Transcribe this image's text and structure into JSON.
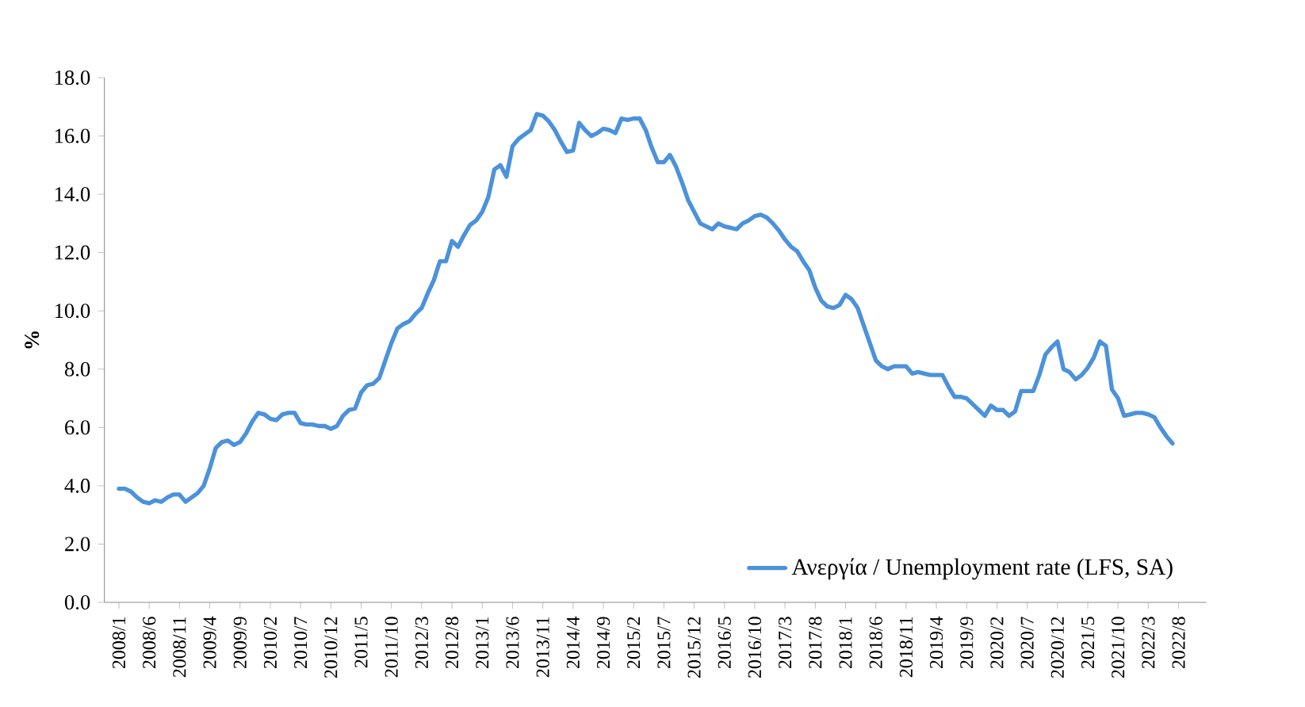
{
  "chart_data": {
    "type": "line",
    "ylabel": "%",
    "categories": [
      "2008/1",
      null,
      null,
      null,
      null,
      "2008/6",
      null,
      null,
      null,
      null,
      "2008/11",
      null,
      null,
      null,
      null,
      "2009/4",
      null,
      null,
      null,
      null,
      "2009/9",
      null,
      null,
      null,
      null,
      "2010/2",
      null,
      null,
      null,
      null,
      "2010/7",
      null,
      null,
      null,
      null,
      "2010/12",
      null,
      null,
      null,
      null,
      "2011/5",
      null,
      null,
      null,
      null,
      "2011/10",
      null,
      null,
      null,
      null,
      "2012/3",
      null,
      null,
      null,
      null,
      "2012/8",
      null,
      null,
      null,
      null,
      "2013/1",
      null,
      null,
      null,
      null,
      "2013/6",
      null,
      null,
      null,
      null,
      "2013/11",
      null,
      null,
      null,
      null,
      "2014/4",
      null,
      null,
      null,
      null,
      "2014/9",
      null,
      null,
      null,
      null,
      "2015/2",
      null,
      null,
      null,
      null,
      "2015/7",
      null,
      null,
      null,
      null,
      "2015/12",
      null,
      null,
      null,
      null,
      "2016/5",
      null,
      null,
      null,
      null,
      "2016/10",
      null,
      null,
      null,
      null,
      "2017/3",
      null,
      null,
      null,
      null,
      "2017/8",
      null,
      null,
      null,
      null,
      "2018/1",
      null,
      null,
      null,
      null,
      "2018/6",
      null,
      null,
      null,
      null,
      "2018/11",
      null,
      null,
      null,
      null,
      "2019/4",
      null,
      null,
      null,
      null,
      "2019/9",
      null,
      null,
      null,
      null,
      "2020/2",
      null,
      null,
      null,
      null,
      "2020/7",
      null,
      null,
      null,
      null,
      "2020/12",
      null,
      null,
      null,
      null,
      "2021/5",
      null,
      null,
      null,
      null,
      "2021/10",
      null,
      null,
      null,
      null,
      "2022/3",
      null,
      null,
      null,
      null,
      "2022/8"
    ],
    "series": [
      {
        "name": "Ανεργία / Unemployment rate (LFS, SA)",
        "color": "#4b92db",
        "values": [
          3.9,
          3.9,
          3.8,
          3.6,
          3.45,
          3.4,
          3.5,
          3.45,
          3.6,
          3.7,
          3.7,
          3.45,
          3.6,
          3.75,
          4.0,
          4.6,
          5.3,
          5.5,
          5.55,
          5.4,
          5.5,
          5.8,
          6.2,
          6.5,
          6.45,
          6.3,
          6.25,
          6.45,
          6.5,
          6.5,
          6.15,
          6.1,
          6.1,
          6.05,
          6.05,
          5.95,
          6.05,
          6.4,
          6.6,
          6.65,
          7.2,
          7.45,
          7.5,
          7.7,
          8.3,
          8.9,
          9.4,
          9.55,
          9.65,
          9.9,
          10.1,
          10.6,
          11.05,
          11.7,
          11.7,
          12.4,
          12.2,
          12.6,
          12.95,
          13.1,
          13.4,
          13.9,
          14.85,
          15.0,
          14.6,
          15.65,
          15.9,
          16.05,
          16.2,
          16.75,
          16.7,
          16.5,
          16.2,
          15.8,
          15.45,
          15.5,
          16.45,
          16.2,
          16.0,
          16.1,
          16.25,
          16.2,
          16.1,
          16.6,
          16.55,
          16.6,
          16.6,
          16.2,
          15.6,
          15.1,
          15.1,
          15.35,
          14.95,
          14.4,
          13.8,
          13.4,
          13.0,
          12.9,
          12.8,
          13.0,
          12.9,
          12.85,
          12.8,
          13.0,
          13.1,
          13.25,
          13.3,
          13.2,
          13.0,
          12.75,
          12.45,
          12.2,
          12.05,
          11.7,
          11.4,
          10.8,
          10.35,
          10.15,
          10.1,
          10.2,
          10.55,
          10.4,
          10.1,
          9.5,
          8.9,
          8.3,
          8.1,
          8.0,
          8.1,
          8.1,
          8.1,
          7.85,
          7.9,
          7.85,
          7.8,
          7.8,
          7.8,
          7.4,
          7.05,
          7.05,
          7.0,
          6.8,
          6.6,
          6.4,
          6.75,
          6.6,
          6.6,
          6.4,
          6.55,
          7.25,
          7.25,
          7.25,
          7.8,
          8.5,
          8.75,
          8.95,
          8.0,
          7.9,
          7.65,
          7.8,
          8.05,
          8.4,
          8.95,
          8.8,
          7.3,
          7.0,
          6.4,
          6.45,
          6.5,
          6.5,
          6.45,
          6.35,
          6.0,
          5.7,
          5.45,
          null
        ]
      }
    ],
    "ylim": [
      0,
      18
    ],
    "yticks": [
      {
        "value": 0,
        "label": "0.0"
      },
      {
        "value": 2,
        "label": "2.0"
      },
      {
        "value": 4,
        "label": "4.0"
      },
      {
        "value": 6,
        "label": "6.0"
      },
      {
        "value": 8,
        "label": "8.0"
      },
      {
        "value": 10,
        "label": "10.0"
      },
      {
        "value": 12,
        "label": "12.0"
      },
      {
        "value": 14,
        "label": "14.0"
      },
      {
        "value": 16,
        "label": "16.0"
      },
      {
        "value": 18,
        "label": "18.0"
      }
    ],
    "legend": "bottom right",
    "grid": false,
    "marker": "none",
    "line_style": "solid"
  }
}
